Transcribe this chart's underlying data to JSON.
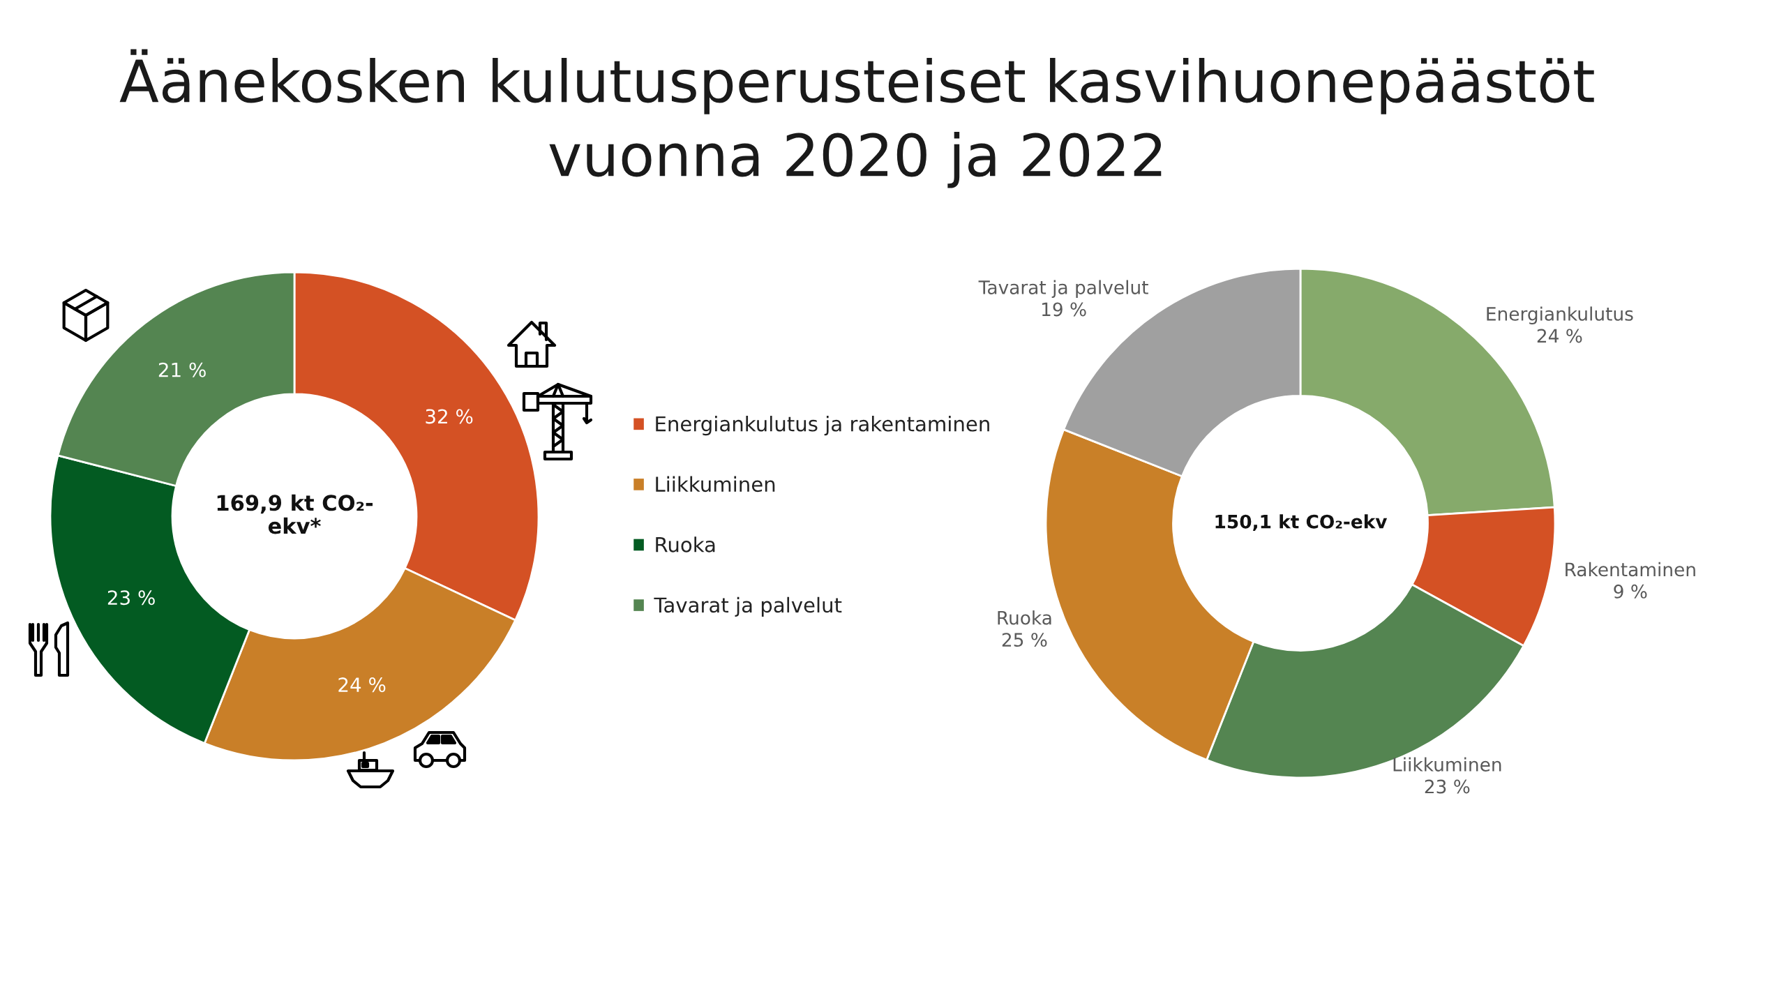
{
  "chart_data": [
    {
      "type": "other",
      "title": "Äänekosken kulutusperusteiset kasvihuonepäästöt\nvuonna 2020 ja 2022"
    },
    {
      "type": "donut",
      "categories": [
        "Energiankulutus ja rakentaminen",
        "Liikkuminen",
        "Ruoka",
        "Tavarat ja palvelut"
      ],
      "values": [
        32,
        24,
        23,
        21
      ],
      "colors": [
        "#d45124",
        "#c97f28",
        "#035b22",
        "#548551"
      ],
      "value_labels": [
        "32 %",
        "24 %",
        "23 %",
        "21 %"
      ],
      "annotations": [
        "169,9 kt CO₂-\nekv*"
      ],
      "legend": "right"
    },
    {
      "type": "donut",
      "categories": [
        "Energiankulutus",
        "Rakentaminen",
        "Liikkuminen",
        "Ruoka",
        "Tavarat ja palvelut"
      ],
      "values": [
        24,
        9,
        23,
        25,
        19
      ],
      "colors": [
        "#86aa6b",
        "#d45124",
        "#548551",
        "#c98028",
        "#a0a0a0"
      ],
      "value_labels": [
        "24 %",
        "9 %",
        "23 %",
        "25 %",
        "19 %"
      ],
      "annotations": [
        "150,1 kt CO₂-ekv"
      ]
    }
  ]
}
